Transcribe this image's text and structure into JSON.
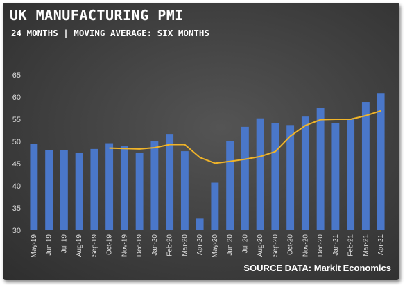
{
  "header": {
    "title": "UK MANUFACTURING PMI",
    "subtitle": "24 MONTHS | MOVING AVERAGE: SIX MONTHS"
  },
  "footer": {
    "source": "SOURCE DATA: Markit Economics"
  },
  "colors": {
    "bar": "#4a77c9",
    "line": "#f0b429",
    "background": "#474747",
    "text": "#ffffff"
  },
  "chart_data": {
    "type": "bar",
    "categories": [
      "May-19",
      "Jun-19",
      "Jul-19",
      "Aug-19",
      "Sep-19",
      "Oct-19",
      "Nov-19",
      "Dec-19",
      "Jan-20",
      "Feb-20",
      "Mar-20",
      "Apr-20",
      "May-20",
      "Jun-20",
      "Jul-20",
      "Aug-20",
      "Sep-20",
      "Oct-20",
      "Nov-20",
      "Dec-20",
      "Jan-21",
      "Feb-21",
      "Mar-21",
      "Apr-21"
    ],
    "series": [
      {
        "type": "bar",
        "values": [
          49.4,
          48.0,
          48.0,
          47.4,
          48.3,
          49.6,
          48.9,
          47.5,
          50.0,
          51.7,
          47.8,
          32.6,
          40.7,
          50.1,
          53.3,
          55.2,
          54.1,
          53.7,
          55.6,
          57.5,
          54.1,
          55.1,
          58.9,
          60.9
        ]
      },
      {
        "type": "line",
        "values": [
          null,
          null,
          null,
          null,
          null,
          48.5,
          48.4,
          48.3,
          48.6,
          49.3,
          49.3,
          46.4,
          45.1,
          45.5,
          46.0,
          46.6,
          47.7,
          51.2,
          53.6,
          54.9,
          55.0,
          55.0,
          55.8,
          56.9
        ]
      }
    ],
    "ylim": [
      30,
      65
    ],
    "yticks": [
      30,
      35,
      40,
      45,
      50,
      55,
      60,
      65
    ],
    "grid": false,
    "legend": "none"
  }
}
